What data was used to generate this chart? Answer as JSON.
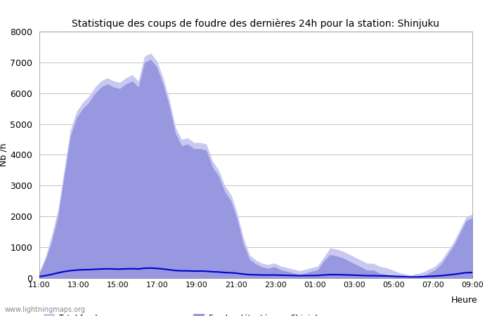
{
  "title": "Statistique des coups de foudre des dernières 24h pour la station: Shinjuku",
  "ylabel": "Nb /h",
  "xlabel": "Heure",
  "ylim": [
    0,
    8000
  ],
  "yticks": [
    0,
    1000,
    2000,
    3000,
    4000,
    5000,
    6000,
    7000,
    8000
  ],
  "xticks": [
    "11:00",
    "13:00",
    "15:00",
    "17:00",
    "19:00",
    "21:00",
    "23:00",
    "01:00",
    "03:00",
    "05:00",
    "07:00",
    "09:00"
  ],
  "total_foudre_color": "#c8c8f0",
  "foudre_shinjuku_color": "#9898e0",
  "moyenne_color": "#0000cc",
  "background_color": "#ffffff",
  "grid_color": "#aaaaaa",
  "watermark": "www.lightningmaps.org",
  "total_foudre": [
    200,
    700,
    1400,
    2200,
    3500,
    4800,
    5400,
    5700,
    5900,
    6200,
    6400,
    6500,
    6400,
    6350,
    6500,
    6600,
    6400,
    7200,
    7300,
    7050,
    6500,
    5800,
    4900,
    4500,
    4550,
    4400,
    4400,
    4350,
    3800,
    3500,
    3000,
    2700,
    2100,
    1300,
    750,
    580,
    480,
    440,
    490,
    390,
    340,
    290,
    240,
    280,
    340,
    390,
    680,
    980,
    940,
    880,
    780,
    680,
    580,
    480,
    480,
    380,
    340,
    270,
    190,
    140,
    90,
    140,
    190,
    290,
    390,
    580,
    880,
    1180,
    1580,
    1980,
    2080
  ],
  "foudre_shinjuku": [
    150,
    600,
    1200,
    2000,
    3300,
    4600,
    5200,
    5500,
    5700,
    6000,
    6200,
    6300,
    6200,
    6150,
    6300,
    6400,
    6200,
    7000,
    7100,
    6850,
    6300,
    5600,
    4700,
    4300,
    4350,
    4200,
    4200,
    4150,
    3600,
    3300,
    2800,
    2500,
    1900,
    1100,
    600,
    460,
    360,
    320,
    370,
    270,
    220,
    170,
    120,
    160,
    220,
    270,
    560,
    760,
    720,
    660,
    560,
    460,
    360,
    260,
    260,
    160,
    120,
    50,
    70,
    20,
    10,
    20,
    70,
    170,
    270,
    460,
    760,
    1060,
    1460,
    1860,
    1960
  ],
  "moyenne": [
    50,
    80,
    120,
    170,
    210,
    240,
    260,
    270,
    275,
    285,
    295,
    300,
    295,
    290,
    300,
    305,
    295,
    320,
    325,
    315,
    295,
    270,
    245,
    235,
    235,
    225,
    228,
    222,
    205,
    198,
    180,
    172,
    155,
    130,
    110,
    105,
    100,
    98,
    100,
    93,
    90,
    83,
    79,
    80,
    83,
    86,
    100,
    113,
    110,
    107,
    100,
    93,
    86,
    79,
    78,
    73,
    70,
    63,
    53,
    46,
    36,
    39,
    46,
    56,
    65,
    79,
    100,
    120,
    148,
    175,
    182
  ]
}
